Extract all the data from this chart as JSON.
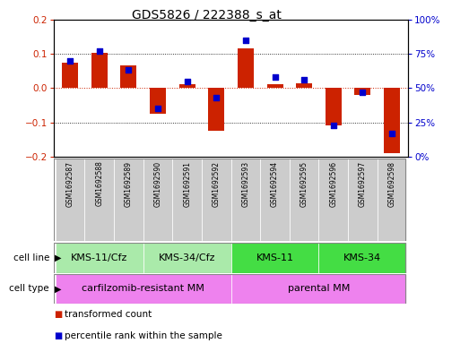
{
  "title": "GDS5826 / 222388_s_at",
  "samples": [
    "GSM1692587",
    "GSM1692588",
    "GSM1692589",
    "GSM1692590",
    "GSM1692591",
    "GSM1692592",
    "GSM1692593",
    "GSM1692594",
    "GSM1692595",
    "GSM1692596",
    "GSM1692597",
    "GSM1692598"
  ],
  "transformed_count": [
    0.075,
    0.103,
    0.065,
    -0.075,
    0.01,
    -0.125,
    0.115,
    0.01,
    0.015,
    -0.11,
    -0.02,
    -0.19
  ],
  "percentile_rank": [
    70,
    77,
    63,
    35,
    55,
    43,
    85,
    58,
    56,
    23,
    47,
    17
  ],
  "cell_line_groups": [
    {
      "label": "KMS-11/Cfz",
      "start": 0,
      "end": 3,
      "color": "#aaeaaa"
    },
    {
      "label": "KMS-34/Cfz",
      "start": 3,
      "end": 6,
      "color": "#aaeaaa"
    },
    {
      "label": "KMS-11",
      "start": 6,
      "end": 9,
      "color": "#44dd44"
    },
    {
      "label": "KMS-34",
      "start": 9,
      "end": 12,
      "color": "#44dd44"
    }
  ],
  "cell_type_groups": [
    {
      "label": "carfilzomib-resistant MM",
      "start": 0,
      "end": 6,
      "color": "#ee82ee"
    },
    {
      "label": "parental MM",
      "start": 6,
      "end": 12,
      "color": "#ee82ee"
    }
  ],
  "bar_color": "#cc2200",
  "dot_color": "#0000cc",
  "ylim_left": [
    -0.2,
    0.2
  ],
  "ylim_right": [
    0,
    100
  ],
  "yticks_left": [
    -0.2,
    -0.1,
    0.0,
    0.1,
    0.2
  ],
  "yticks_right": [
    0,
    25,
    50,
    75,
    100
  ],
  "ytick_labels_right": [
    "0%",
    "25%",
    "50%",
    "75%",
    "100%"
  ],
  "bar_width": 0.55,
  "sample_box_color": "#cccccc",
  "border_color": "#888888"
}
